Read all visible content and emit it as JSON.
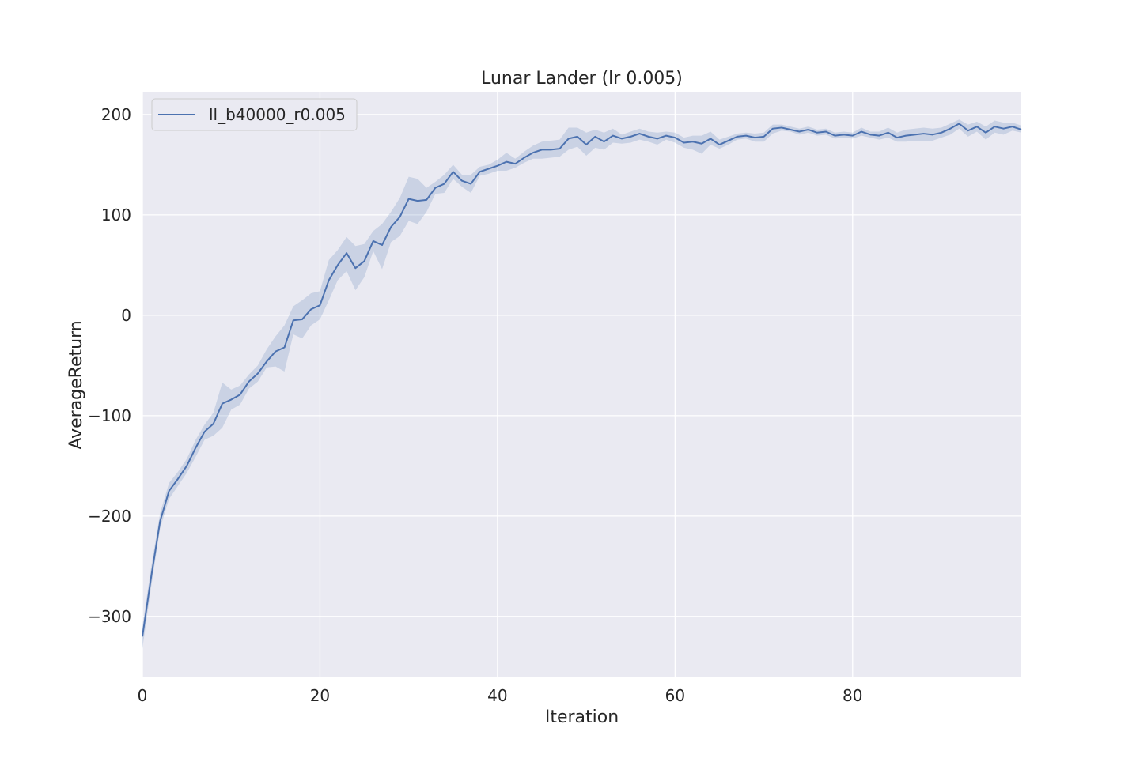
{
  "chart_data": {
    "type": "line",
    "title": "Lunar Lander (lr 0.005)",
    "xlabel": "Iteration",
    "ylabel": "AverageReturn",
    "xlim": [
      0,
      99
    ],
    "ylim": [
      -360,
      222
    ],
    "xticks": [
      0,
      20,
      40,
      60,
      80
    ],
    "xtick_labels": [
      "0",
      "20",
      "40",
      "60",
      "80"
    ],
    "yticks": [
      -300,
      -200,
      -100,
      0,
      100,
      200
    ],
    "ytick_labels": [
      "−300",
      "−200",
      "−100",
      "0",
      "100",
      "200"
    ],
    "grid": true,
    "legend_position": "top-left",
    "colors": {
      "background": "#eaeaf2",
      "grid": "#ffffff",
      "line": "#4c72b0",
      "band": "#4c72b0"
    },
    "series": [
      {
        "name": "ll_b40000_r0.005",
        "x": [
          0,
          1,
          2,
          3,
          4,
          5,
          6,
          7,
          8,
          9,
          10,
          11,
          12,
          13,
          14,
          15,
          16,
          17,
          18,
          19,
          20,
          21,
          22,
          23,
          24,
          25,
          26,
          27,
          28,
          29,
          30,
          31,
          32,
          33,
          34,
          35,
          36,
          37,
          38,
          39,
          40,
          41,
          42,
          43,
          44,
          45,
          46,
          47,
          48,
          49,
          50,
          51,
          52,
          53,
          54,
          55,
          56,
          57,
          58,
          59,
          60,
          61,
          62,
          63,
          64,
          65,
          66,
          67,
          68,
          69,
          70,
          71,
          72,
          73,
          74,
          75,
          76,
          77,
          78,
          79,
          80,
          81,
          82,
          83,
          84,
          85,
          86,
          87,
          88,
          89,
          90,
          91,
          92,
          93,
          94,
          95,
          96,
          97,
          98,
          99
        ],
        "y": [
          -320,
          -260,
          -205,
          -175,
          -163,
          -150,
          -132,
          -116,
          -108,
          -88,
          -84,
          -79,
          -66,
          -58,
          -46,
          -36,
          -32,
          -5,
          -4,
          6,
          10,
          35,
          50,
          62,
          47,
          54,
          74,
          70,
          88,
          98,
          116,
          114,
          115,
          127,
          131,
          143,
          134,
          131,
          143,
          146,
          149,
          153,
          151,
          157,
          162,
          165,
          165,
          166,
          176,
          178,
          170,
          178,
          173,
          179,
          176,
          178,
          181,
          178,
          176,
          179,
          177,
          172,
          173,
          171,
          176,
          170,
          174,
          178,
          179,
          177,
          178,
          186,
          187,
          185,
          183,
          185,
          182,
          183,
          179,
          180,
          179,
          183,
          180,
          179,
          182,
          177,
          179,
          180,
          181,
          180,
          182,
          186,
          191,
          184,
          188,
          182,
          188,
          186,
          188,
          185
        ],
        "y_lower": [
          -332,
          -270,
          -212,
          -183,
          -170,
          -157,
          -141,
          -124,
          -120,
          -112,
          -94,
          -89,
          -73,
          -66,
          -52,
          -51,
          -56,
          -19,
          -23,
          -10,
          -4,
          15,
          35,
          44,
          25,
          38,
          64,
          46,
          73,
          79,
          94,
          91,
          103,
          121,
          122,
          136,
          128,
          122,
          139,
          141,
          144,
          144,
          147,
          152,
          156,
          156,
          157,
          158,
          165,
          168,
          159,
          167,
          165,
          172,
          171,
          172,
          175,
          173,
          170,
          175,
          172,
          167,
          165,
          161,
          170,
          166,
          170,
          175,
          176,
          173,
          173,
          181,
          184,
          183,
          180,
          182,
          179,
          180,
          176,
          177,
          176,
          179,
          177,
          175,
          177,
          173,
          173,
          174,
          174,
          174,
          177,
          180,
          186,
          178,
          183,
          175,
          182,
          180,
          184,
          182
        ],
        "y_upper": [
          -310,
          -250,
          -197,
          -167,
          -156,
          -143,
          -124,
          -109,
          -97,
          -67,
          -74,
          -70,
          -59,
          -50,
          -34,
          -21,
          -10,
          9,
          15,
          22,
          24,
          55,
          65,
          78,
          69,
          71,
          84,
          91,
          103,
          117,
          138,
          136,
          127,
          133,
          140,
          150,
          140,
          140,
          148,
          150,
          155,
          162,
          156,
          163,
          169,
          173,
          174,
          175,
          187,
          187,
          182,
          185,
          182,
          186,
          180,
          183,
          186,
          183,
          182,
          183,
          182,
          177,
          179,
          179,
          183,
          175,
          178,
          181,
          182,
          181,
          182,
          190,
          190,
          188,
          186,
          188,
          185,
          186,
          182,
          183,
          182,
          187,
          183,
          183,
          187,
          182,
          185,
          186,
          187,
          186,
          187,
          191,
          195,
          190,
          193,
          188,
          194,
          192,
          192,
          189
        ]
      }
    ]
  }
}
